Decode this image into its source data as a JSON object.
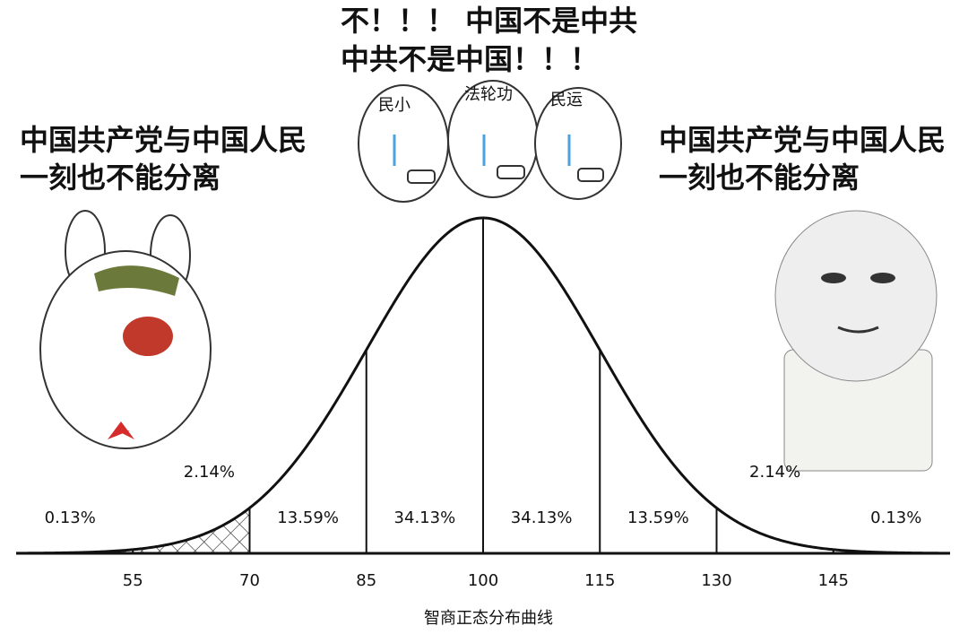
{
  "chart_data": {
    "type": "bell",
    "annotations": [
      "不！！！ 中国不是中共",
      "中共不是中国！！！",
      "中国共产党与中国人民",
      "一刻也不能分离",
      "中国共产党与中国人民",
      "一刻也不能分离",
      "民小",
      "法轮功",
      "民运"
    ],
    "x_label": "智商正态分布曲线",
    "xlim": [
      40,
      160
    ],
    "xticks": [
      55,
      70,
      85,
      100,
      115,
      130,
      145
    ],
    "values": [
      0.13,
      2.14,
      13.59,
      34.13,
      34.13,
      13.59,
      2.14,
      0.13
    ],
    "value_labels": [
      "0.13%",
      "2.14%",
      "13.59%",
      "34.13%",
      "34.13%",
      "13.59%",
      "2.14%",
      "0.13%"
    ]
  }
}
